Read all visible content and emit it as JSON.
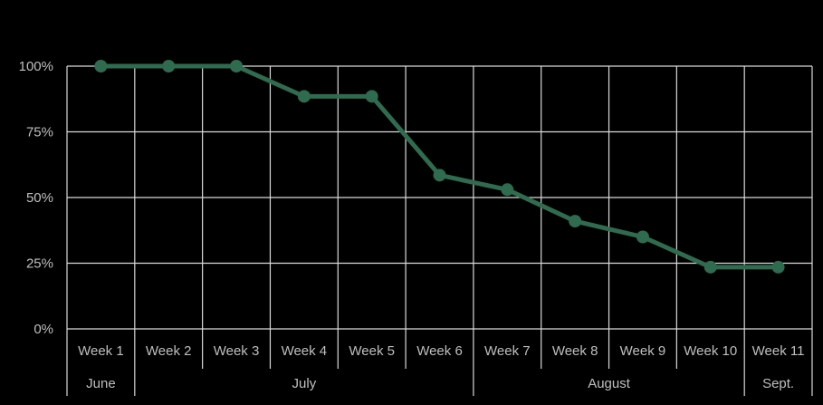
{
  "chart_data": {
    "type": "line",
    "categories": [
      "Week 1",
      "Week 2",
      "Week 3",
      "Week 4",
      "Week 5",
      "Week 6",
      "Week 7",
      "Week 8",
      "Week 9",
      "Week 10",
      "Week 11"
    ],
    "groups": [
      {
        "label": "June",
        "start": 0,
        "end": 0
      },
      {
        "label": "July",
        "start": 1,
        "end": 5
      },
      {
        "label": "August",
        "start": 6,
        "end": 9
      },
      {
        "label": "Sept.",
        "start": 10,
        "end": 10
      }
    ],
    "series": [
      {
        "values": [
          1.0,
          1.0,
          1.0,
          0.885,
          0.885,
          0.585,
          0.53,
          0.41,
          0.35,
          0.235,
          0.235
        ]
      }
    ],
    "yticks": [
      "0%",
      "25%",
      "50%",
      "75%",
      "100%"
    ],
    "ylim": [
      0,
      1
    ],
    "grid": true,
    "colors": {
      "line": "#2f6b4f",
      "grid": "#d9d9d9",
      "text": "#bfbfbf",
      "background": "#000000"
    }
  }
}
